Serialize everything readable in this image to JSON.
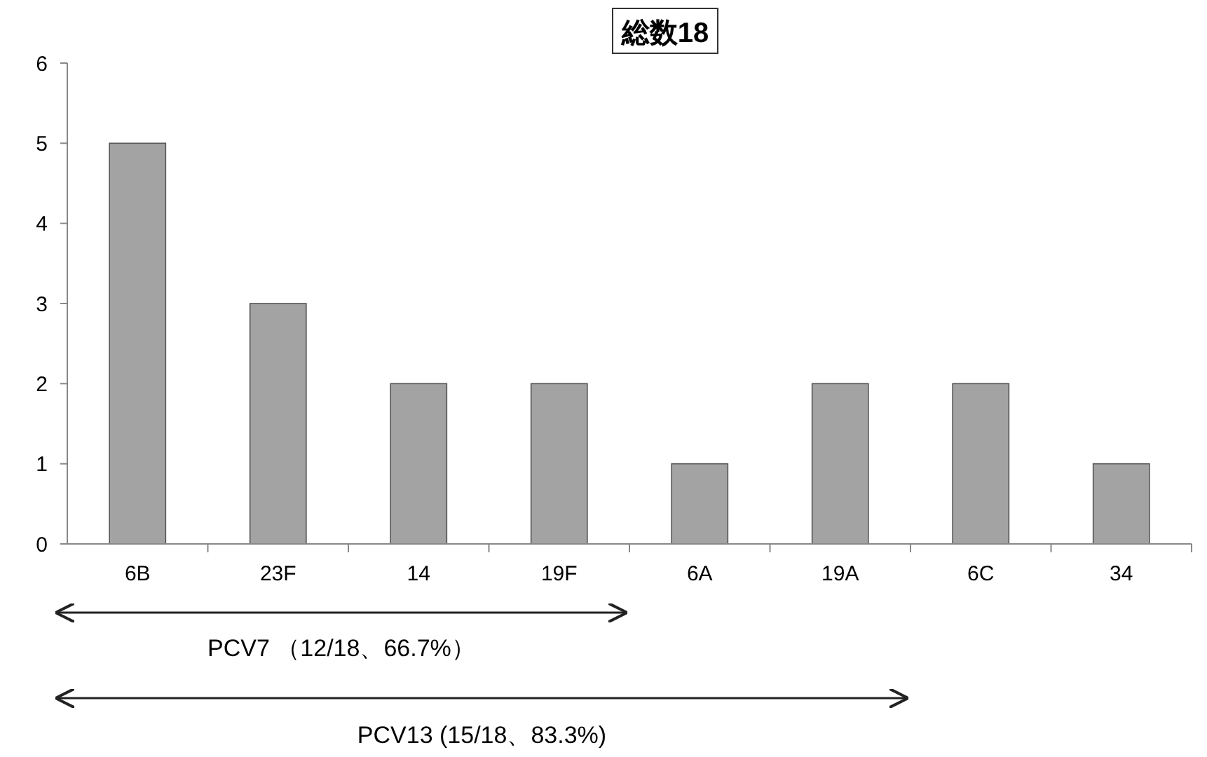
{
  "chart_data": {
    "type": "bar",
    "title": "総数18",
    "categories": [
      "6B",
      "23F",
      "14",
      "19F",
      "6A",
      "19A",
      "6C",
      "34"
    ],
    "values": [
      5,
      3,
      2,
      2,
      1,
      2,
      2,
      1
    ],
    "color": "#a3a3a3",
    "ylim": [
      0,
      6
    ],
    "yticks": [
      0,
      1,
      2,
      3,
      4,
      5,
      6
    ],
    "grid": false,
    "annotations": [
      "PCV7 （12/18、66.7%）",
      "PCV13 (15/18、83.3%)"
    ]
  }
}
